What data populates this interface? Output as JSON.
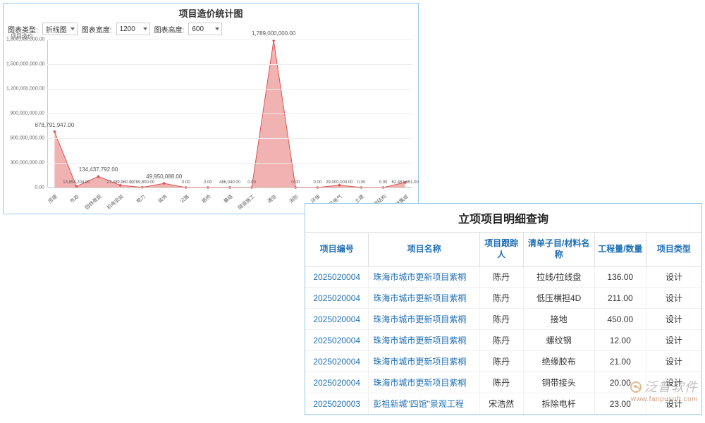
{
  "chart": {
    "title": "项目造价统计图",
    "controls": {
      "type_label": "图表类型:",
      "type_value": "折线图",
      "width_label": "图表宽度:",
      "width_value": "1200",
      "height_label": "图表高度:",
      "height_value": "600"
    },
    "y_axis_title": "项目造价",
    "type": "area",
    "line_color": "#d9534f",
    "fill_color": "rgba(229,115,115,0.55)",
    "marker_color": "#d9534f",
    "marker_radius": 1.8,
    "background_color": "#ffffff",
    "grid_color": "#eeeeee",
    "ylim": [
      0,
      1800000000
    ],
    "ytick_step": 300000000,
    "y_ticks": [
      "0.00",
      "300,000,000.00",
      "600,000,000.00",
      "900,000,000.00",
      "1,200,000,000.00",
      "1,500,000,000.00",
      "1,800,000,000.00"
    ],
    "categories": [
      "房建",
      "市政",
      "园林景观",
      "机电安装",
      "电力",
      "装饰",
      "公路",
      "路桥",
      "幕墙",
      "隧道施工",
      "通信",
      "消防",
      "环保",
      "电子电气",
      "土建",
      "钢结构",
      "系统集成"
    ],
    "values": [
      678791947,
      13854204,
      134437792,
      27489960,
      1789800,
      49950088,
      0,
      0,
      486040,
      0,
      1789000000,
      0,
      0,
      29000000,
      0,
      0,
      62461651
    ],
    "value_labels": [
      "678,791,947.00",
      "13,854,204.00",
      "134,437,792.00",
      "27,489,960.00",
      "1,789,800.00",
      "49,950,088.00",
      "0.00",
      "0.00",
      "486,040.00",
      "0.00",
      "1,789,000,000.00",
      "0.00",
      "0.00",
      "29,000,000.00",
      "0.00",
      "0.00",
      "62,461,651.00"
    ],
    "highlight_labels": [
      0,
      2,
      5,
      10
    ]
  },
  "table": {
    "title": "立项项目明细查询",
    "columns": [
      "项目编号",
      "项目名称",
      "项目跟踪人",
      "清单子目/材料名称",
      "工程量/数量",
      "项目类型"
    ],
    "col_widths": [
      "16%",
      "28%",
      "11%",
      "18%",
      "13%",
      "14%"
    ],
    "rows": [
      {
        "id": "2025020004",
        "name": "珠海市城市更新项目紫桐",
        "tracker": "陈丹",
        "material": "拉线/拉线盘",
        "qty": "136.00",
        "ptype": "设计"
      },
      {
        "id": "2025020004",
        "name": "珠海市城市更新项目紫桐",
        "tracker": "陈丹",
        "material": "低压横担4D",
        "qty": "211.00",
        "ptype": "设计"
      },
      {
        "id": "2025020004",
        "name": "珠海市城市更新项目紫桐",
        "tracker": "陈丹",
        "material": "接地",
        "qty": "450.00",
        "ptype": "设计"
      },
      {
        "id": "2025020004",
        "name": "珠海市城市更新项目紫桐",
        "tracker": "陈丹",
        "material": "螺纹钢",
        "qty": "12.00",
        "ptype": "设计"
      },
      {
        "id": "2025020004",
        "name": "珠海市城市更新项目紫桐",
        "tracker": "陈丹",
        "material": "绝缘胶布",
        "qty": "21.00",
        "ptype": "设计"
      },
      {
        "id": "2025020004",
        "name": "珠海市城市更新项目紫桐",
        "tracker": "陈丹",
        "material": "铜带接头",
        "qty": "20.00",
        "ptype": "设计"
      },
      {
        "id": "2025020003",
        "name": "彭祖新城\"四馆\"景观工程",
        "tracker": "宋浩然",
        "material": "拆除电杆",
        "qty": "23.00",
        "ptype": "设计"
      }
    ]
  },
  "watermark": {
    "brand": "泛普软件",
    "url": "www.fanpusoft.com"
  }
}
